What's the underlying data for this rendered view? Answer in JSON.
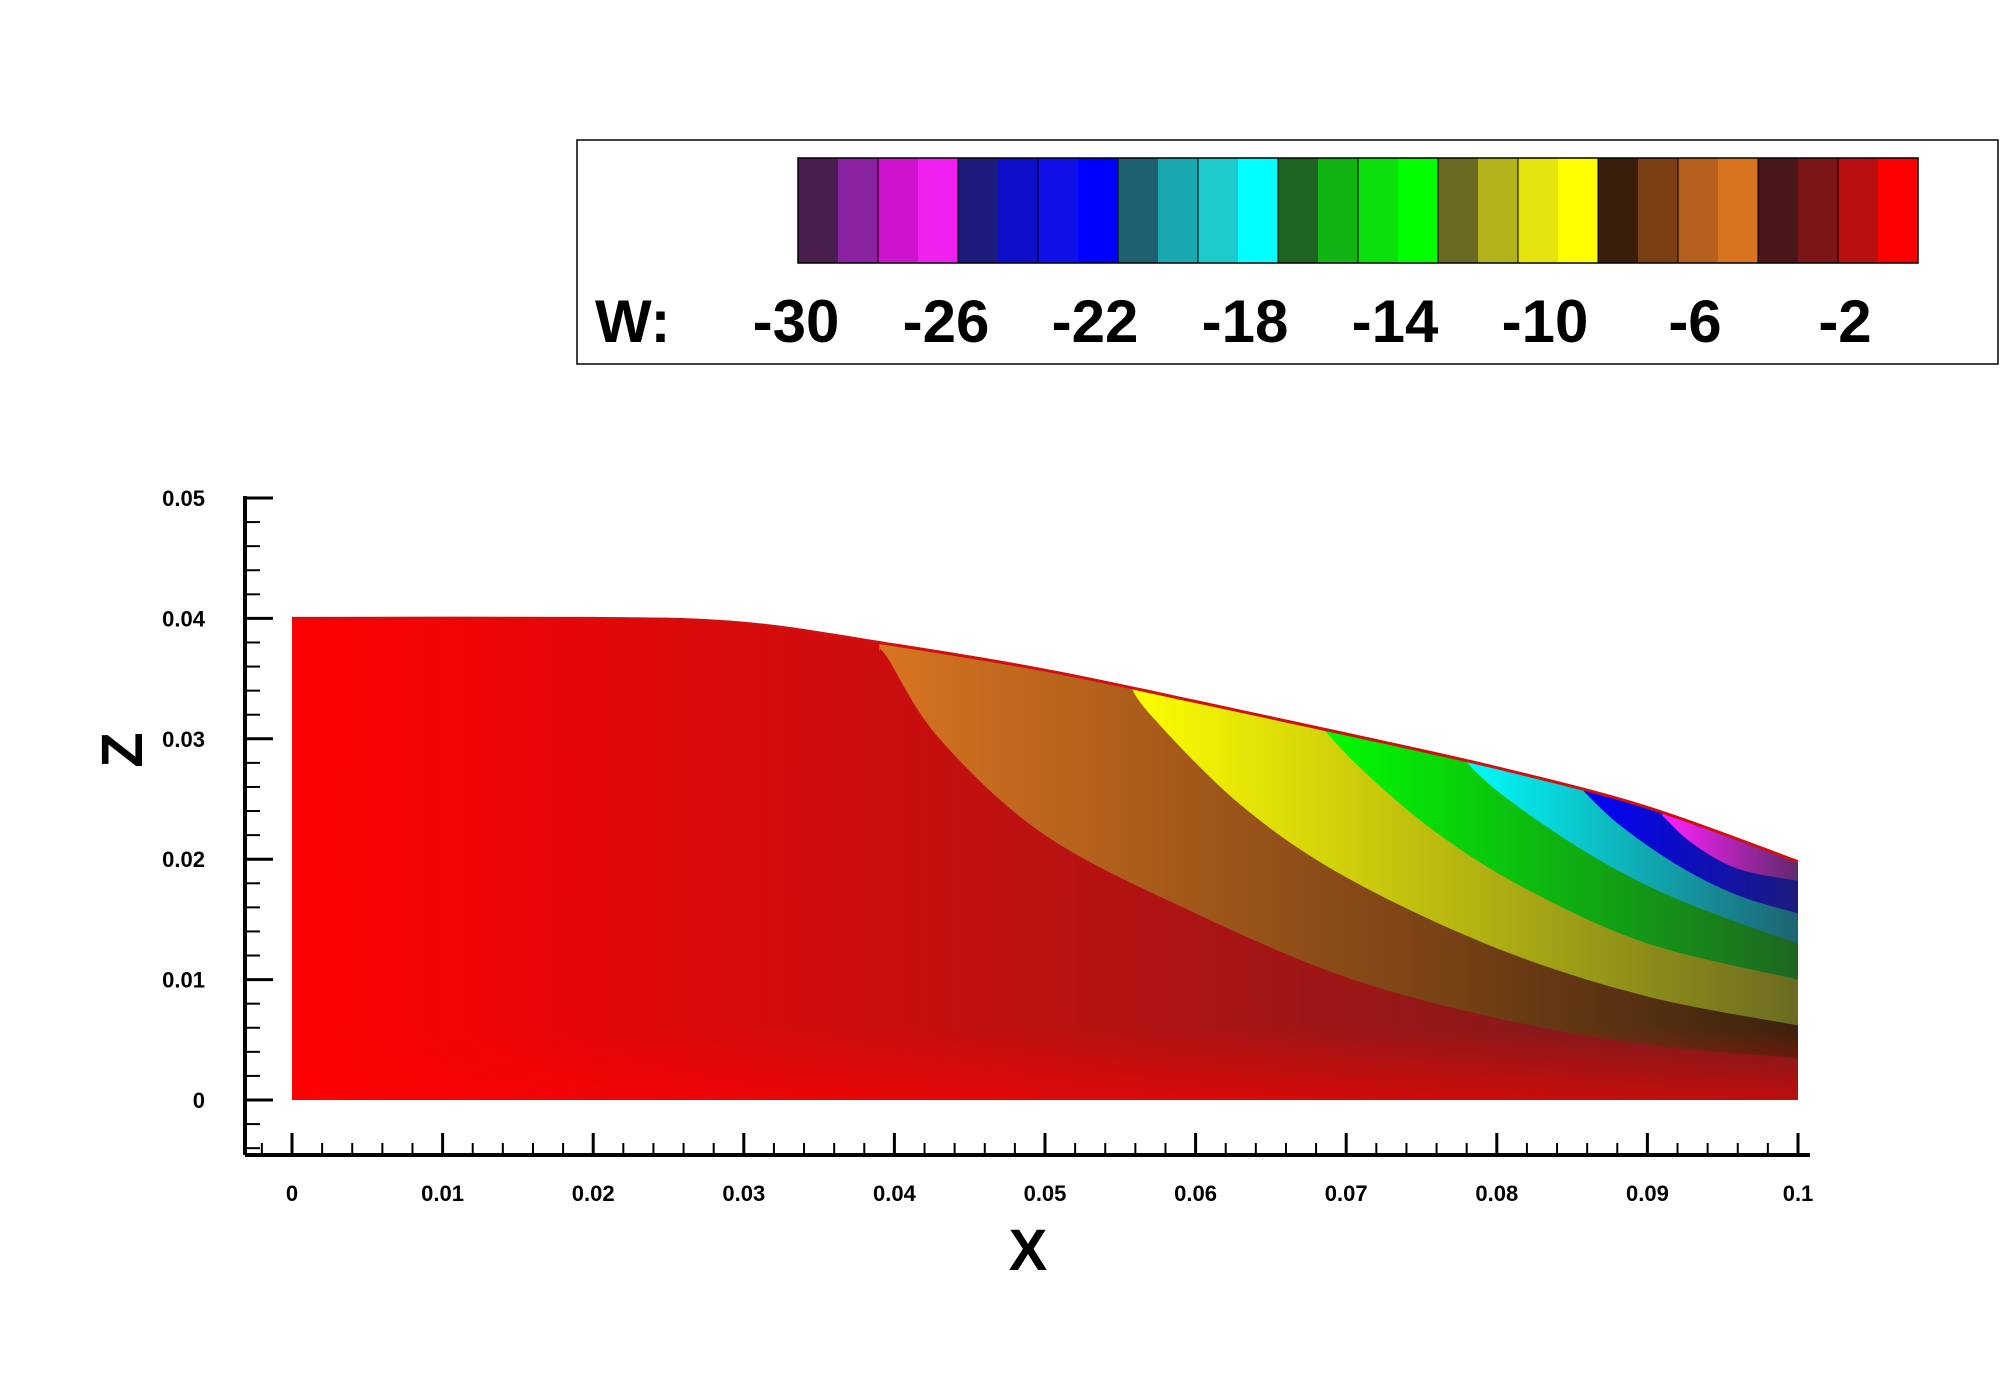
{
  "chart_data": {
    "type": "heatmap",
    "title": "",
    "xlabel": "X",
    "ylabel": "Z",
    "xlim": [
      0,
      0.1
    ],
    "ylim": [
      0,
      0.05
    ],
    "x_ticks": [
      "0",
      "0.01",
      "0.02",
      "0.03",
      "0.04",
      "0.05",
      "0.06",
      "0.07",
      "0.08",
      "0.09",
      "0.1"
    ],
    "y_ticks": [
      "0",
      "0.01",
      "0.02",
      "0.03",
      "0.04",
      "0.05"
    ],
    "grid": false,
    "legend": {
      "placement": "top-right",
      "variable": "W:",
      "labels": [
        "-30",
        "-26",
        "-22",
        "-18",
        "-14",
        "-10",
        "-6",
        "-2"
      ],
      "color_bands": [
        [
          "#4a1f50",
          "#8b22a0",
          "#cc14cc",
          "#f020f0"
        ],
        [
          "#1c1c7a",
          "#0e0ec8",
          "#1010e8",
          "#0000ff"
        ],
        [
          "#1e6070",
          "#1aa8b0",
          "#1ccccc",
          "#00ffff"
        ],
        [
          "#1e6422",
          "#12b414",
          "#0ce00c",
          "#00ff00"
        ],
        [
          "#6a6a22",
          "#b4b41a",
          "#e4e40c",
          "#ffff00"
        ],
        [
          "#3a1e0c",
          "#7a4014",
          "#b4601e",
          "#d87420"
        ],
        [
          "#4a1818",
          "#7c1616",
          "#b81010",
          "#ff0000"
        ]
      ]
    },
    "domain_top_boundary": {
      "x": [
        0,
        0.02,
        0.03,
        0.04,
        0.05,
        0.06,
        0.07,
        0.08,
        0.09,
        0.1
      ],
      "z": [
        0.04,
        0.04,
        0.0396,
        0.0378,
        0.0357,
        0.0331,
        0.0304,
        0.0276,
        0.0243,
        0.0198
      ]
    },
    "contour_regions": [
      {
        "level": "-6",
        "color": "#d87420",
        "edge": {
          "x": [
            0.039,
            0.0395,
            0.043,
            0.05,
            0.06,
            0.07,
            0.08,
            0.09,
            0.1
          ],
          "z": [
            0.0372,
            0.0368,
            0.03,
            0.022,
            0.0155,
            0.0102,
            0.0068,
            0.0046,
            0.0035
          ]
        }
      },
      {
        "level": "-10",
        "color": "#ffff00",
        "edge": {
          "x": [
            0.0555,
            0.057,
            0.063,
            0.07,
            0.08,
            0.09,
            0.1
          ],
          "z": [
            0.0349,
            0.032,
            0.0245,
            0.0185,
            0.0126,
            0.0086,
            0.0062
          ]
        }
      },
      {
        "level": "-14",
        "color": "#00ff00",
        "edge": {
          "x": [
            0.068,
            0.071,
            0.076,
            0.082,
            0.09,
            0.1
          ],
          "z": [
            0.0315,
            0.0275,
            0.0222,
            0.0175,
            0.013,
            0.01
          ]
        }
      },
      {
        "level": "-18",
        "color": "#00ffff",
        "edge": {
          "x": [
            0.0775,
            0.08,
            0.085,
            0.09,
            0.095,
            0.1
          ],
          "z": [
            0.0287,
            0.0257,
            0.0213,
            0.0178,
            0.0152,
            0.013
          ]
        }
      },
      {
        "level": "-22",
        "color": "#0000ff",
        "edge": {
          "x": [
            0.0855,
            0.088,
            0.092,
            0.096,
            0.1
          ],
          "z": [
            0.026,
            0.023,
            0.0195,
            0.017,
            0.0155
          ]
        }
      },
      {
        "level": "-26",
        "color": "#f020f0",
        "edge": {
          "x": [
            0.091,
            0.093,
            0.096,
            0.1
          ],
          "z": [
            0.0236,
            0.0213,
            0.0192,
            0.0182
          ]
        }
      }
    ],
    "colors": {
      "background_red": "#ff0000",
      "dark_red": "#6e1e1e",
      "dark_brown": "#3a220e",
      "dark_olive": "#6a6a22",
      "dark_green": "#1e6422",
      "dark_teal": "#1e6070",
      "dark_blue": "#1c1c7a",
      "dark_purple": "#5a2a66"
    }
  }
}
